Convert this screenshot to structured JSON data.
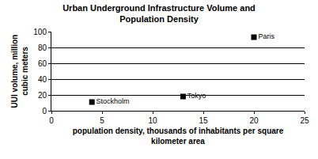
{
  "chart_data": {
    "type": "scatter",
    "title": "Urban Underground Infrastructure Volume and\nPopulation Density",
    "x_label": "population density, thousands of inhabitants per square\nkilometer area",
    "y_label": "UUI volume, million\ncubic meters",
    "x": [
      4,
      13,
      20
    ],
    "values": [
      11,
      18,
      93
    ],
    "point_labels": [
      "Stockholm",
      "Tokyo",
      "Paris"
    ],
    "color": "#000000",
    "marker": "square",
    "xlim": [
      0,
      25
    ],
    "xticks": [
      0,
      5,
      10,
      15,
      20,
      25
    ],
    "ylim": [
      0,
      100
    ],
    "yticks": [
      0,
      20,
      40,
      60,
      80,
      100
    ],
    "grid": true
  }
}
